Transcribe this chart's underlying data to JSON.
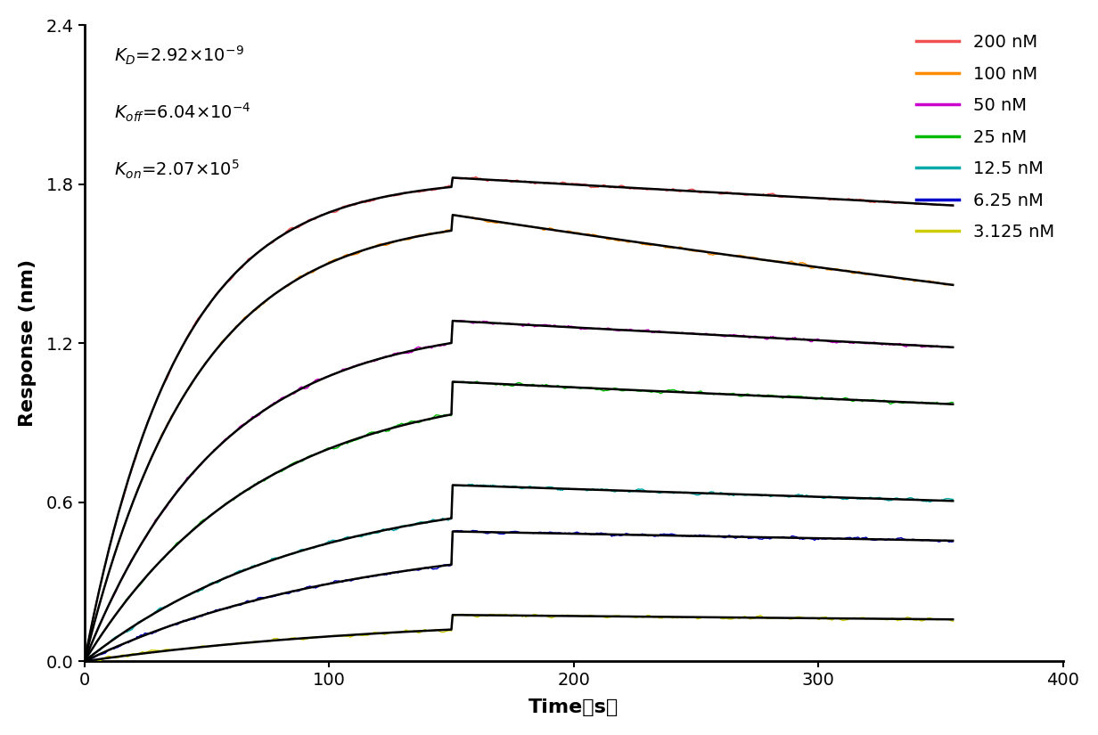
{
  "ylabel": "Response (nm)",
  "xlim": [
    0,
    400
  ],
  "ylim": [
    0.0,
    2.4
  ],
  "xticks": [
    0,
    100,
    200,
    300,
    400
  ],
  "yticks": [
    0.0,
    0.6,
    1.2,
    1.8,
    2.4
  ],
  "series": [
    {
      "label": "200 nM",
      "color": "#F05050",
      "tau_on": 38,
      "max_resp": 1.825,
      "final_resp": 1.72,
      "kon_end": 150,
      "t_total": 355
    },
    {
      "label": "100 nM",
      "color": "#FF8C00",
      "tau_on": 45,
      "max_resp": 1.685,
      "final_resp": 1.42,
      "kon_end": 150,
      "t_total": 355
    },
    {
      "label": "50 nM",
      "color": "#CC00CC",
      "tau_on": 55,
      "max_resp": 1.285,
      "final_resp": 1.185,
      "kon_end": 150,
      "t_total": 355
    },
    {
      "label": "25 nM",
      "color": "#00BB00",
      "tau_on": 70,
      "max_resp": 1.055,
      "final_resp": 0.97,
      "kon_end": 150,
      "t_total": 355
    },
    {
      "label": "12.5 nM",
      "color": "#00AAAA",
      "tau_on": 90,
      "max_resp": 0.665,
      "final_resp": 0.605,
      "kon_end": 150,
      "t_total": 355
    },
    {
      "label": "6.25 nM",
      "color": "#0000CC",
      "tau_on": 110,
      "max_resp": 0.49,
      "final_resp": 0.455,
      "kon_end": 150,
      "t_total": 355
    },
    {
      "label": "3.125 nM",
      "color": "#CCCC00",
      "tau_on": 130,
      "max_resp": 0.175,
      "final_resp": 0.158,
      "kon_end": 150,
      "t_total": 355
    }
  ],
  "fit_color": "#000000",
  "background_color": "#FFFFFF",
  "font_size_ticks": 14,
  "font_size_labels": 16,
  "font_size_legend": 14,
  "font_size_annotation": 14,
  "noise_amplitude": 0.007
}
